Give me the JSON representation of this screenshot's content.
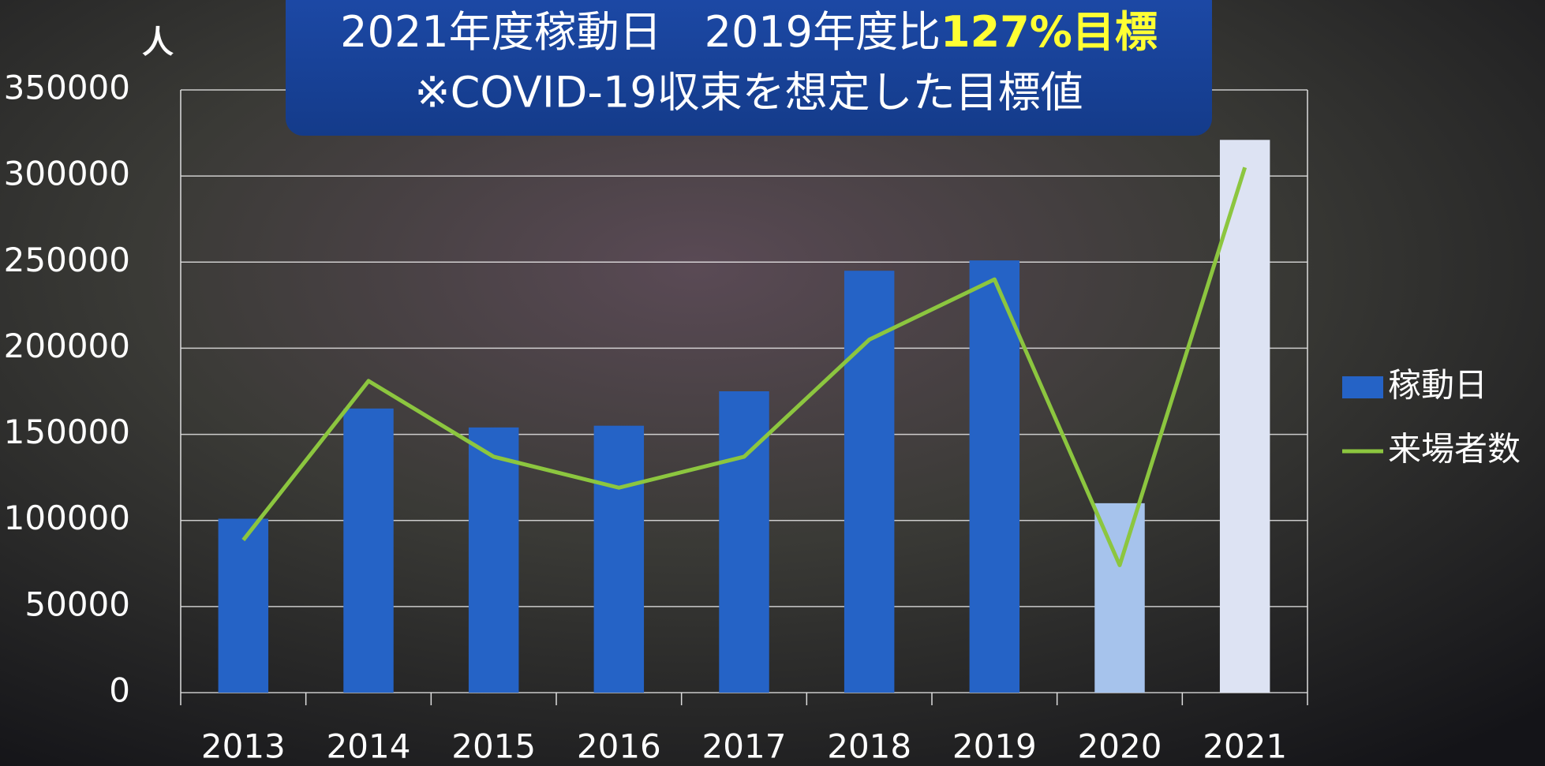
{
  "chart_data": {
    "type": "bar",
    "title_parts": [
      "2021年度稼動日　2019年度比",
      "127%目標"
    ],
    "subtitle": "※COVID-19収束を想定した目標値",
    "y_label": "人",
    "categories": [
      "2013",
      "2014",
      "2015",
      "2016",
      "2017",
      "2018",
      "2019",
      "2020",
      "2021"
    ],
    "series": [
      {
        "name": "稼動日",
        "type": "bar",
        "color": "#2563c6",
        "colors": [
          "#2563c6",
          "#2563c6",
          "#2563c6",
          "#2563c6",
          "#2563c6",
          "#2563c6",
          "#2563c6",
          "#a6c3ec",
          "#dde3f3"
        ],
        "values": [
          101000,
          165000,
          154000,
          155000,
          175000,
          245000,
          251000,
          110000,
          321000
        ]
      },
      {
        "name": "来場者数",
        "type": "line",
        "color": "#8cc63f",
        "values": [
          88600,
          181000,
          137000,
          119000,
          137000,
          205000,
          240000,
          74000,
          305000
        ]
      }
    ],
    "ylim": [
      0,
      350000
    ],
    "yticks": [
      0,
      50000,
      100000,
      150000,
      200000,
      250000,
      300000,
      350000
    ],
    "grid": true,
    "title_highlight_color": "#ffff33",
    "legend": "right"
  }
}
